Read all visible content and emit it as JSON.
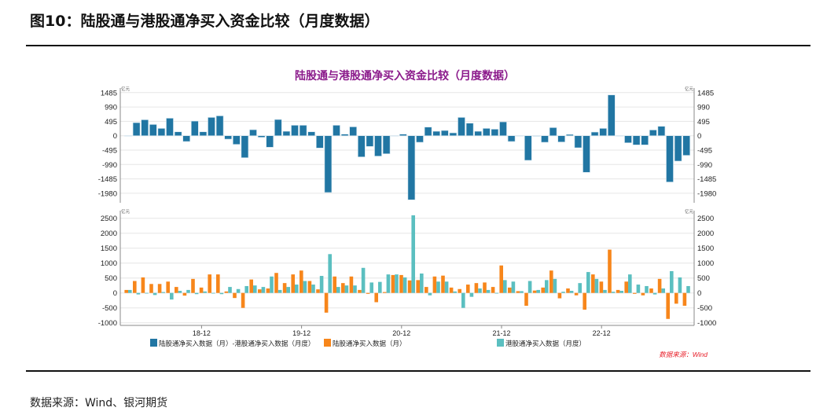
{
  "figure_title": "图10：陆股通与港股通净买入资金比较（月度数据）",
  "footer_source": "数据来源：Wind、银河期货",
  "chart_data": [
    {
      "type": "bar",
      "title": "陆股通与港股通净买入资金比较（月度数据）",
      "unit": "亿元",
      "period": [
        "2018-03",
        "2023-10"
      ],
      "x_tick_labels": [
        "18-12",
        "19-12",
        "20-12",
        "21-12",
        "22-12"
      ],
      "x_tick_index": [
        9,
        21,
        33,
        45,
        57
      ],
      "ylim": [
        -2200,
        1600
      ],
      "yticks": [
        1485,
        990,
        495,
        0,
        -495,
        -990,
        -1485,
        -1980
      ],
      "series": [
        {
          "name": "陆股通净买入数据（月）-港股通净买入数据（月度）",
          "color": "#2176A3",
          "values": [
            0,
            450,
            549,
            387,
            252,
            603,
            135,
            -198,
            504,
            135,
            630,
            684,
            -117,
            -297,
            -756,
            207,
            -54,
            -396,
            558,
            153,
            360,
            360,
            135,
            -423,
            -1953,
            360,
            54,
            306,
            -729,
            -369,
            -702,
            -621,
            -10,
            54,
            -2205,
            -225,
            297,
            153,
            180,
            99,
            630,
            432,
            153,
            252,
            225,
            477,
            -198,
            0,
            -846,
            -18,
            -225,
            279,
            -216,
            45,
            -414,
            -1260,
            126,
            252,
            1404,
            0,
            -243,
            -315,
            -315,
            198,
            324,
            -1593,
            -873,
            -675
          ]
        }
      ]
    },
    {
      "type": "bar",
      "unit": "亿元",
      "x_tick_labels": [
        "18-12",
        "19-12",
        "20-12",
        "21-12",
        "22-12"
      ],
      "x_tick_index": [
        9,
        21,
        33,
        45,
        57
      ],
      "ylim": [
        -1000,
        2700
      ],
      "yticks": [
        2500,
        2000,
        1500,
        1000,
        500,
        0,
        -500,
        -1000
      ],
      "series": [
        {
          "name": "陆股通净买入数据（月）",
          "color": "#F7861B",
          "values": [
            100,
            400,
            520,
            300,
            300,
            380,
            200,
            -90,
            470,
            180,
            620,
            620,
            50,
            -170,
            -500,
            450,
            120,
            150,
            670,
            330,
            620,
            750,
            400,
            120,
            -660,
            550,
            330,
            550,
            100,
            -30,
            -310,
            30,
            600,
            600,
            420,
            430,
            200,
            550,
            580,
            180,
            130,
            280,
            330,
            350,
            200,
            920,
            180,
            60,
            -430,
            80,
            180,
            750,
            -180,
            150,
            -80,
            -560,
            620,
            380,
            1450,
            100,
            380,
            -30,
            -80,
            150,
            470,
            -870,
            -360,
            -430
          ]
        },
        {
          "name": "港股通净买入数据（月度）",
          "color": "#5BBFC0",
          "values": [
            100,
            -50,
            -20,
            -70,
            30,
            -220,
            70,
            100,
            -40,
            50,
            -20,
            -40,
            200,
            130,
            230,
            250,
            200,
            550,
            100,
            200,
            280,
            400,
            280,
            570,
            1300,
            200,
            250,
            250,
            840,
            350,
            370,
            620,
            620,
            520,
            2600,
            650,
            -80,
            380,
            380,
            50,
            -500,
            -130,
            150,
            100,
            -20,
            430,
            380,
            60,
            400,
            100,
            430,
            470,
            40,
            70,
            330,
            700,
            470,
            100,
            40,
            70,
            620,
            280,
            230,
            -50,
            150,
            730,
            520,
            230
          ]
        }
      ],
      "source_note": "数据来源：Wind"
    }
  ]
}
